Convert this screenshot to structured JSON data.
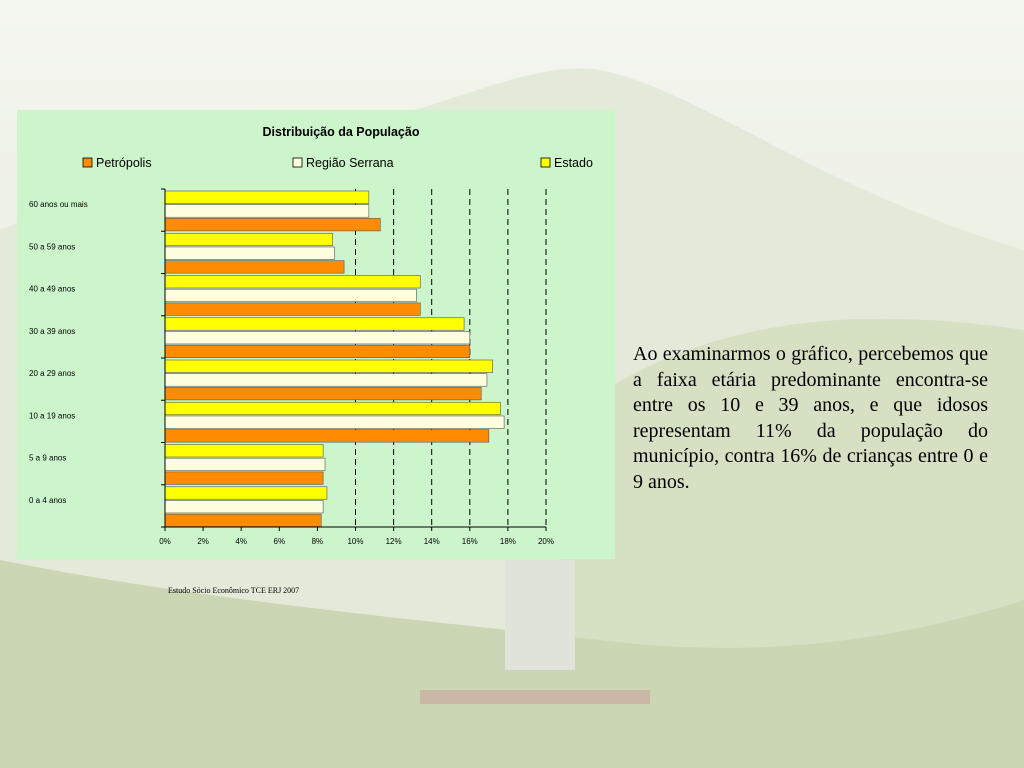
{
  "slide": {
    "paragraph": "Ao examinarmos o gráfico, percebemos que a faixa etária predominante encontra-se entre os 10 e 39 anos, e que idosos representam 11% da população do município, contra 16% de crianças entre 0 e 9 anos.",
    "source": "Estudo Sócio Econômico TCE ERJ  2007"
  },
  "chart_data": {
    "type": "bar",
    "orientation": "horizontal",
    "title": "Distribuição da População",
    "categories": [
      "60 anos ou mais",
      "50 a 59 anos",
      "40 a 49 anos",
      "30 a 39 anos",
      "20 a 29 anos",
      "10 a 19 anos",
      "5 a 9 anos",
      "0 a 4 anos"
    ],
    "series": [
      {
        "name": "Estado",
        "color": "#ffff00",
        "values": [
          10.7,
          8.8,
          13.4,
          15.7,
          17.2,
          17.6,
          8.3,
          8.5
        ]
      },
      {
        "name": "Região Serrana",
        "color": "#ffffe0",
        "values": [
          10.7,
          8.9,
          13.2,
          16.0,
          16.9,
          17.8,
          8.4,
          8.3
        ]
      },
      {
        "name": "Petrópolis",
        "color": "#ff8c00",
        "values": [
          11.3,
          9.4,
          13.4,
          16.0,
          16.6,
          17.0,
          8.3,
          8.2
        ]
      }
    ],
    "legend_order": [
      "Petrópolis",
      "Região Serrana",
      "Estado"
    ],
    "xlim": [
      0,
      20
    ],
    "xticks": [
      "0%",
      "2%",
      "4%",
      "6%",
      "8%",
      "10%",
      "12%",
      "14%",
      "16%",
      "18%",
      "20%"
    ],
    "grid": "vertical dashed at 10%-20%",
    "legend_position": "top"
  }
}
